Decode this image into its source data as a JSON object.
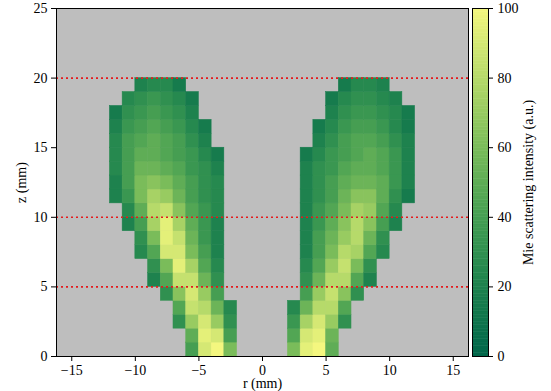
{
  "chart_data": {
    "type": "heatmap",
    "xlabel": "r (mm)",
    "ylabel": "z (mm)",
    "xlim": [
      -16.2,
      16.2
    ],
    "ylim": [
      0,
      25
    ],
    "xticks": [
      {
        "value": -15,
        "label": "−15"
      },
      {
        "value": -10,
        "label": "−10"
      },
      {
        "value": -5,
        "label": "−5"
      },
      0,
      5,
      10,
      15
    ],
    "yticks": [
      0,
      5,
      10,
      15,
      20,
      25
    ],
    "r_bins": [
      -15,
      -14,
      -13,
      -12,
      -11,
      -10,
      -9,
      -8,
      -7,
      -6,
      -5,
      -4,
      -3,
      -2,
      -1,
      0,
      1,
      2,
      3,
      4,
      5,
      6,
      7,
      8,
      9,
      10,
      11,
      12,
      13,
      14,
      15
    ],
    "z_bins": [
      0,
      1,
      2,
      3,
      4,
      5,
      6,
      7,
      8,
      9,
      10,
      11,
      12,
      13,
      14,
      15,
      16,
      17,
      18,
      19,
      20
    ],
    "intensity": [
      [
        null,
        null,
        null,
        null,
        null,
        null,
        null,
        null,
        null,
        40,
        90,
        100,
        60,
        null,
        null,
        null,
        null,
        60,
        95,
        100,
        50,
        null,
        null,
        null,
        null,
        null,
        null,
        null,
        null,
        null
      ],
      [
        null,
        null,
        null,
        null,
        null,
        null,
        null,
        null,
        null,
        50,
        95,
        90,
        40,
        null,
        null,
        null,
        null,
        45,
        90,
        95,
        55,
        null,
        null,
        null,
        null,
        null,
        null,
        null,
        null,
        null
      ],
      [
        null,
        null,
        null,
        null,
        null,
        null,
        null,
        null,
        30,
        70,
        90,
        70,
        30,
        null,
        null,
        null,
        null,
        35,
        75,
        90,
        70,
        30,
        null,
        null,
        null,
        null,
        null,
        null,
        null,
        null
      ],
      [
        null,
        null,
        null,
        null,
        null,
        null,
        null,
        null,
        45,
        85,
        80,
        55,
        25,
        null,
        null,
        null,
        null,
        25,
        55,
        80,
        80,
        45,
        null,
        null,
        null,
        null,
        null,
        null,
        null,
        null
      ],
      [
        null,
        null,
        null,
        null,
        null,
        null,
        null,
        30,
        65,
        90,
        70,
        40,
        null,
        null,
        null,
        null,
        null,
        null,
        40,
        70,
        85,
        65,
        30,
        null,
        null,
        null,
        null,
        null,
        null,
        null
      ],
      [
        null,
        null,
        null,
        null,
        null,
        null,
        20,
        45,
        85,
        85,
        55,
        30,
        null,
        null,
        null,
        null,
        null,
        null,
        30,
        55,
        80,
        80,
        45,
        20,
        null,
        null,
        null,
        null,
        null,
        null
      ],
      [
        null,
        null,
        null,
        null,
        null,
        null,
        30,
        60,
        95,
        75,
        45,
        25,
        null,
        null,
        null,
        null,
        null,
        null,
        25,
        45,
        70,
        85,
        60,
        30,
        null,
        null,
        null,
        null,
        null,
        null
      ],
      [
        null,
        null,
        null,
        null,
        null,
        25,
        45,
        90,
        90,
        60,
        40,
        20,
        null,
        null,
        null,
        null,
        null,
        null,
        20,
        40,
        60,
        80,
        75,
        45,
        25,
        null,
        null,
        null,
        null,
        null
      ],
      [
        null,
        null,
        null,
        null,
        null,
        30,
        60,
        95,
        85,
        55,
        35,
        20,
        null,
        null,
        null,
        null,
        null,
        null,
        20,
        40,
        55,
        70,
        80,
        55,
        30,
        null,
        null,
        null,
        null,
        null
      ],
      [
        null,
        null,
        null,
        null,
        20,
        40,
        75,
        95,
        75,
        50,
        35,
        20,
        null,
        null,
        null,
        null,
        null,
        null,
        20,
        35,
        50,
        65,
        80,
        65,
        40,
        20,
        null,
        null,
        null,
        null
      ],
      [
        null,
        null,
        null,
        null,
        25,
        50,
        80,
        85,
        65,
        45,
        35,
        25,
        null,
        null,
        null,
        null,
        null,
        null,
        20,
        35,
        45,
        60,
        75,
        70,
        45,
        25,
        null,
        null,
        null,
        null
      ],
      [
        null,
        null,
        null,
        20,
        35,
        60,
        75,
        70,
        55,
        40,
        30,
        25,
        null,
        null,
        null,
        null,
        null,
        null,
        20,
        30,
        40,
        55,
        65,
        65,
        50,
        30,
        15,
        null,
        null,
        null
      ],
      [
        null,
        null,
        null,
        20,
        40,
        60,
        65,
        60,
        50,
        40,
        30,
        25,
        null,
        null,
        null,
        null,
        null,
        null,
        20,
        30,
        40,
        50,
        55,
        55,
        50,
        35,
        20,
        null,
        null,
        null
      ],
      [
        null,
        null,
        null,
        25,
        40,
        55,
        55,
        50,
        45,
        35,
        30,
        20,
        null,
        null,
        null,
        null,
        null,
        null,
        20,
        30,
        35,
        45,
        50,
        50,
        45,
        35,
        20,
        null,
        null,
        null
      ],
      [
        null,
        null,
        null,
        25,
        40,
        50,
        50,
        45,
        40,
        35,
        25,
        15,
        null,
        null,
        null,
        null,
        null,
        null,
        15,
        25,
        35,
        40,
        45,
        50,
        45,
        35,
        20,
        null,
        null,
        null
      ],
      [
        null,
        null,
        null,
        25,
        40,
        45,
        50,
        45,
        40,
        30,
        20,
        null,
        null,
        null,
        null,
        null,
        null,
        null,
        null,
        20,
        30,
        40,
        45,
        45,
        40,
        30,
        20,
        null,
        null,
        null
      ],
      [
        null,
        null,
        null,
        20,
        35,
        40,
        45,
        40,
        35,
        25,
        15,
        null,
        null,
        null,
        null,
        null,
        null,
        null,
        null,
        15,
        25,
        35,
        40,
        40,
        35,
        25,
        15,
        null,
        null,
        null
      ],
      [
        null,
        null,
        null,
        15,
        30,
        35,
        40,
        35,
        30,
        20,
        null,
        null,
        null,
        null,
        null,
        null,
        null,
        null,
        null,
        null,
        20,
        30,
        35,
        35,
        30,
        25,
        15,
        null,
        null,
        null
      ],
      [
        null,
        null,
        null,
        null,
        25,
        30,
        35,
        30,
        25,
        15,
        null,
        null,
        null,
        null,
        null,
        null,
        null,
        null,
        null,
        null,
        15,
        25,
        30,
        30,
        25,
        20,
        null,
        null,
        null,
        null
      ],
      [
        null,
        null,
        null,
        null,
        null,
        20,
        25,
        25,
        15,
        null,
        null,
        null,
        null,
        null,
        null,
        null,
        null,
        null,
        null,
        null,
        null,
        15,
        25,
        25,
        20,
        null,
        null,
        null,
        null,
        null
      ]
    ],
    "colorbar": {
      "label": "Mie scattering intensity (a.u.)",
      "lim": [
        0,
        100
      ],
      "ticks": [
        0,
        20,
        40,
        60,
        80,
        100
      ]
    },
    "reference_lines": {
      "z": [
        5,
        10,
        20
      ],
      "color": "#e41a1c",
      "line_style": "dotted"
    }
  }
}
